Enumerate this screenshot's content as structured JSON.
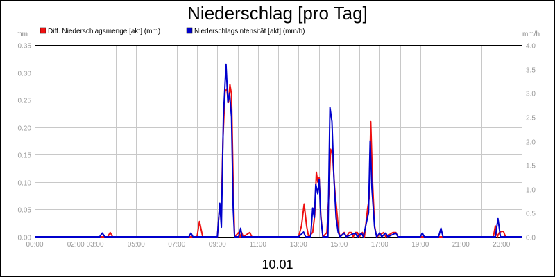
{
  "chart_data": {
    "type": "line",
    "title": "Niederschlag [pro Tag]",
    "ylabel_left": "mm",
    "ylabel_right": "mm/h",
    "xlabel": "10.01",
    "x_tick_labels": [
      "00:00",
      "02:00 03:00",
      "05:00",
      "07:00",
      "09:00",
      "11:00",
      "13:00",
      "15:00",
      "17:00",
      "19:00",
      "21:00",
      "23:00"
    ],
    "x_ticks_hours": [
      0,
      2.5,
      5,
      7,
      9,
      11,
      13,
      15,
      17,
      19,
      21,
      23
    ],
    "x_range_hours": [
      0,
      24
    ],
    "ylim_left": [
      0,
      0.35
    ],
    "ylim_right": [
      0,
      4.0
    ],
    "y_ticks_left": [
      "0.00",
      "0.05",
      "0.10",
      "0.15",
      "0.20",
      "0.25",
      "0.30",
      "0.35"
    ],
    "y_ticks_right": [
      "0.0",
      "0.5",
      "1.0",
      "1.5",
      "2.0",
      "2.5",
      "3.0",
      "3.5",
      "4.0"
    ],
    "grid": true,
    "legend_position": "top-left",
    "series": [
      {
        "name": "Diff. Niederschlagsmenge [akt] (mm)",
        "axis": "left",
        "color": "#ee1111",
        "points": [
          [
            0,
            0
          ],
          [
            3.6,
            0
          ],
          [
            3.72,
            0.008
          ],
          [
            3.84,
            0
          ],
          [
            8.0,
            0
          ],
          [
            8.12,
            0.028
          ],
          [
            8.28,
            0
          ],
          [
            9.0,
            0
          ],
          [
            9.1,
            0.05
          ],
          [
            9.2,
            0.05
          ],
          [
            9.28,
            0.18
          ],
          [
            9.38,
            0.265
          ],
          [
            9.47,
            0.27
          ],
          [
            9.55,
            0.245
          ],
          [
            9.62,
            0.278
          ],
          [
            9.7,
            0.26
          ],
          [
            9.78,
            0.1
          ],
          [
            9.85,
            0
          ],
          [
            10.05,
            0.008
          ],
          [
            10.12,
            0
          ],
          [
            10.2,
            0.008
          ],
          [
            10.28,
            0
          ],
          [
            10.6,
            0.008
          ],
          [
            10.7,
            0
          ],
          [
            13.0,
            0
          ],
          [
            13.15,
            0.02
          ],
          [
            13.28,
            0.06
          ],
          [
            13.4,
            0.02
          ],
          [
            13.5,
            0
          ],
          [
            13.7,
            0.008
          ],
          [
            13.8,
            0.04
          ],
          [
            13.88,
            0.118
          ],
          [
            13.95,
            0.1
          ],
          [
            14.02,
            0.108
          ],
          [
            14.1,
            0.04
          ],
          [
            14.2,
            0
          ],
          [
            14.4,
            0.008
          ],
          [
            14.5,
            0.08
          ],
          [
            14.58,
            0.16
          ],
          [
            14.68,
            0.15
          ],
          [
            14.78,
            0.09
          ],
          [
            14.88,
            0.05
          ],
          [
            14.98,
            0.01
          ],
          [
            15.05,
            0
          ],
          [
            15.25,
            0.008
          ],
          [
            15.35,
            0
          ],
          [
            15.5,
            0.008
          ],
          [
            15.6,
            0.008
          ],
          [
            15.7,
            0
          ],
          [
            15.8,
            0.008
          ],
          [
            15.9,
            0.008
          ],
          [
            16.0,
            0
          ],
          [
            16.15,
            0.008
          ],
          [
            16.25,
            0
          ],
          [
            16.4,
            0.05
          ],
          [
            16.48,
            0.07
          ],
          [
            16.56,
            0.21
          ],
          [
            16.65,
            0.1
          ],
          [
            16.75,
            0.02
          ],
          [
            16.85,
            0
          ],
          [
            17.2,
            0.008
          ],
          [
            17.3,
            0
          ],
          [
            17.65,
            0.008
          ],
          [
            17.8,
            0.008
          ],
          [
            17.9,
            0
          ],
          [
            22.6,
            0
          ],
          [
            22.7,
            0.02
          ],
          [
            22.8,
            0
          ],
          [
            22.9,
            0.008
          ],
          [
            23.0,
            0.01
          ],
          [
            23.1,
            0.01
          ],
          [
            23.2,
            0
          ],
          [
            24,
            0
          ]
        ]
      },
      {
        "name": "Niederschlagsintensität [akt] (mm/h)",
        "axis": "right",
        "color": "#0000cc",
        "points": [
          [
            0,
            0
          ],
          [
            3.2,
            0
          ],
          [
            3.33,
            0.08
          ],
          [
            3.46,
            0
          ],
          [
            7.6,
            0
          ],
          [
            7.7,
            0.08
          ],
          [
            7.8,
            0
          ],
          [
            9.0,
            0
          ],
          [
            9.12,
            0.7
          ],
          [
            9.2,
            0.2
          ],
          [
            9.3,
            2.5
          ],
          [
            9.43,
            3.6
          ],
          [
            9.52,
            2.8
          ],
          [
            9.6,
            3.0
          ],
          [
            9.7,
            2.5
          ],
          [
            9.78,
            0.6
          ],
          [
            9.85,
            0
          ],
          [
            10.05,
            0
          ],
          [
            10.15,
            0.18
          ],
          [
            10.22,
            0
          ],
          [
            13.0,
            0
          ],
          [
            13.25,
            0.1
          ],
          [
            13.35,
            0
          ],
          [
            13.6,
            0
          ],
          [
            13.7,
            0.6
          ],
          [
            13.78,
            0.4
          ],
          [
            13.85,
            1.1
          ],
          [
            13.95,
            0.9
          ],
          [
            14.02,
            1.2
          ],
          [
            14.1,
            0.4
          ],
          [
            14.2,
            0
          ],
          [
            14.45,
            0
          ],
          [
            14.55,
            2.7
          ],
          [
            14.65,
            2.4
          ],
          [
            14.75,
            1.2
          ],
          [
            14.85,
            0.4
          ],
          [
            14.95,
            0.1
          ],
          [
            15.05,
            0
          ],
          [
            15.25,
            0.08
          ],
          [
            15.35,
            0
          ],
          [
            15.8,
            0.08
          ],
          [
            15.9,
            0
          ],
          [
            16.1,
            0.08
          ],
          [
            16.2,
            0
          ],
          [
            16.35,
            0.3
          ],
          [
            16.45,
            0.5
          ],
          [
            16.53,
            2.0
          ],
          [
            16.62,
            1.0
          ],
          [
            16.75,
            0.2
          ],
          [
            16.85,
            0
          ],
          [
            17.0,
            0.08
          ],
          [
            17.1,
            0
          ],
          [
            17.3,
            0.08
          ],
          [
            17.4,
            0
          ],
          [
            17.8,
            0.08
          ],
          [
            17.9,
            0
          ],
          [
            19.0,
            0
          ],
          [
            19.1,
            0.08
          ],
          [
            19.2,
            0
          ],
          [
            19.9,
            0
          ],
          [
            20.02,
            0.18
          ],
          [
            20.12,
            0
          ],
          [
            22.7,
            0
          ],
          [
            22.83,
            0.38
          ],
          [
            22.95,
            0
          ],
          [
            24,
            0
          ]
        ]
      }
    ]
  }
}
